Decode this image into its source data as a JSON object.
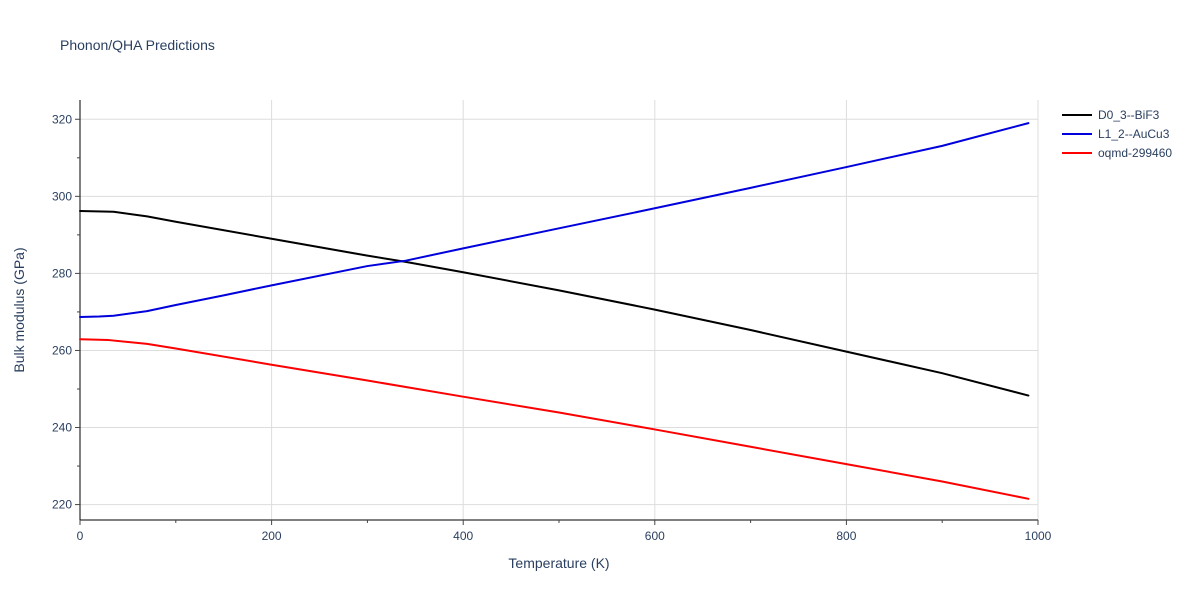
{
  "chart_data": {
    "type": "line",
    "title": "Phonon/QHA Predictions",
    "xlabel": "Temperature (K)",
    "ylabel": "Bulk modulus (GPa)",
    "xlim": [
      0,
      1000
    ],
    "ylim": [
      216,
      325
    ],
    "xticks": [
      0,
      200,
      400,
      600,
      800,
      1000
    ],
    "yticks": [
      220,
      240,
      260,
      280,
      300,
      320
    ],
    "grid": true,
    "legend_position": "top-right",
    "series": [
      {
        "name": "D0_3--BiF3",
        "color": "#000000",
        "x": [
          0,
          35,
          70,
          100,
          200,
          300,
          340,
          400,
          500,
          600,
          700,
          800,
          900,
          990
        ],
        "y": [
          296.2,
          296.0,
          294.8,
          293.4,
          289.0,
          284.6,
          283.0,
          280.3,
          275.6,
          270.6,
          265.3,
          259.7,
          254.1,
          248.3
        ]
      },
      {
        "name": "L1_2--AuCu3",
        "color": "#0000dd",
        "x": [
          0,
          20,
          35,
          70,
          100,
          150,
          200,
          300,
          340,
          400,
          500,
          600,
          700,
          800,
          900,
          990
        ],
        "y": [
          268.7,
          268.8,
          269.0,
          270.2,
          271.8,
          274.3,
          276.9,
          281.9,
          283.3,
          286.5,
          291.7,
          296.9,
          302.2,
          307.6,
          313.1,
          319.0
        ]
      },
      {
        "name": "oqmd-299460",
        "color": "#ff0000",
        "x": [
          0,
          30,
          70,
          100,
          200,
          300,
          400,
          500,
          600,
          700,
          800,
          900,
          990
        ],
        "y": [
          262.9,
          262.7,
          261.7,
          260.5,
          256.3,
          252.2,
          248.0,
          243.9,
          239.5,
          235.0,
          230.5,
          226.0,
          221.5
        ]
      }
    ]
  }
}
